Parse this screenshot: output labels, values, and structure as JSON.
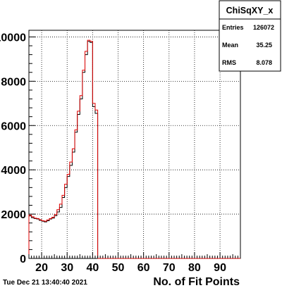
{
  "chart_data": {
    "type": "bar",
    "title": "",
    "xlabel": "No. of Fit Points",
    "ylabel": "",
    "xlim": [
      15,
      98
    ],
    "ylim": [
      0,
      10300
    ],
    "grid": true,
    "bin_width": 1,
    "x_start": 15,
    "x_ticks": [
      "20",
      "30",
      "40",
      "50",
      "60",
      "70",
      "80",
      "90"
    ],
    "x_tick_values": [
      20,
      30,
      40,
      50,
      60,
      70,
      80,
      90
    ],
    "y_ticks": [
      "0",
      "2000",
      "4000",
      "6000",
      "8000",
      "10000"
    ],
    "y_tick_values": [
      0,
      2000,
      4000,
      6000,
      8000,
      10000
    ],
    "series": [
      {
        "color": "#000000",
        "values": [
          1920,
          1840,
          1800,
          1780,
          1720,
          1680,
          1650,
          1700,
          1780,
          1820,
          1930,
          2100,
          2300,
          2750,
          3200,
          3700,
          4200,
          4800,
          5700,
          6500,
          7200,
          8400,
          9200,
          9800,
          9750,
          6850,
          6550,
          0,
          0,
          0,
          0,
          0,
          0,
          0,
          0,
          0,
          0,
          0,
          0,
          0,
          0,
          0,
          0,
          0,
          0,
          0,
          0,
          0,
          0,
          0,
          0,
          0,
          0,
          0,
          0,
          0,
          0,
          0,
          0,
          0,
          0,
          0,
          0,
          0,
          0,
          0,
          0,
          0,
          0,
          0,
          0,
          0,
          0,
          0,
          0,
          0,
          0,
          0,
          0,
          0,
          0,
          0,
          0
        ]
      },
      {
        "color": "#e00000",
        "values": [
          1960,
          1880,
          1820,
          1800,
          1750,
          1700,
          1680,
          1740,
          1800,
          1860,
          1980,
          2200,
          2450,
          2850,
          3350,
          3800,
          4350,
          4950,
          5800,
          6650,
          7350,
          8500,
          9350,
          9850,
          9800,
          7000,
          6700,
          0,
          0,
          0,
          0,
          0,
          0,
          0,
          0,
          0,
          0,
          0,
          0,
          0,
          0,
          0,
          0,
          0,
          0,
          0,
          0,
          0,
          0,
          0,
          0,
          0,
          0,
          0,
          0,
          0,
          0,
          0,
          0,
          0,
          0,
          0,
          0,
          0,
          0,
          0,
          0,
          0,
          0,
          0,
          0,
          0,
          0,
          0,
          0,
          0,
          0,
          0,
          0,
          0,
          0,
          0,
          0
        ]
      }
    ],
    "stats": {
      "title": "ChiSqXY_x",
      "rows": [
        {
          "label": "Entries",
          "value": "126072"
        },
        {
          "label": "Mean",
          "value": "35.25"
        },
        {
          "label": "RMS",
          "value": "8.078"
        }
      ]
    }
  },
  "footer": {
    "datestamp": "Tue Dec 21 13:40:40 2021"
  }
}
